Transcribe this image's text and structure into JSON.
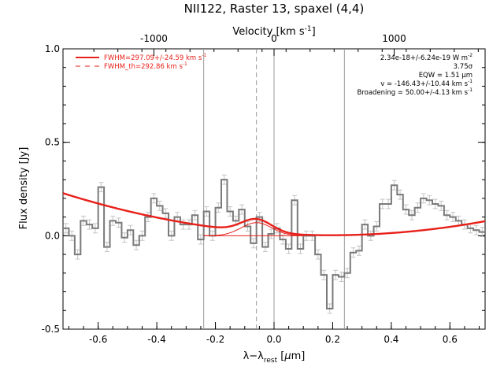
{
  "chart_data": {
    "type": "line",
    "title": "NII122, Raster 13, spaxel (4,4)",
    "xlabel_main": "λ−λ",
    "xlabel_sub": "rest",
    "xlabel_unit_pre": " [",
    "xlabel_unit_mu": "μ",
    "xlabel_unit_post": "m]",
    "ylabel": "Flux density [Jy]",
    "top_axis_label": "Velocity [km s",
    "top_axis_label_exp": "-1",
    "top_axis_label_end": "]",
    "xlim": [
      -0.72,
      0.72
    ],
    "ylim": [
      -0.5,
      1.0
    ],
    "x_ticks": [
      "-0.6",
      "-0.4",
      "-0.2",
      "0.0",
      "0.2",
      "0.4",
      "0.6"
    ],
    "x_tick_values": [
      -0.6,
      -0.4,
      -0.2,
      0.0,
      0.2,
      0.4,
      0.6
    ],
    "y_ticks": [
      "-0.5",
      "0.0",
      "0.5",
      "1.0"
    ],
    "y_tick_values": [
      -0.5,
      0.0,
      0.5,
      1.0
    ],
    "top_ticks": [
      "-1000",
      "0",
      "1000"
    ],
    "top_tick_values": [
      -1000,
      0,
      1000
    ],
    "velocity_per_um": 2440,
    "legend": [
      {
        "label": "FWHM=297.09+/-24.59 km s",
        "exp": "-1",
        "style": "solid",
        "color": "#e8201a"
      },
      {
        "label": "FWHM_th=292.86 km s",
        "exp": "-1",
        "style": "dashed",
        "color": "#e8201a"
      }
    ],
    "annotations": [
      {
        "pre": "2.34e-18+/-6.24e-19 W m",
        "exp": "-2"
      },
      {
        "pre": "3.75σ",
        "exp": ""
      },
      {
        "pre": "EQW = 1.51 μm",
        "exp": ""
      },
      {
        "pre": "v = -146.43+/-10.44 km s",
        "exp": "-1"
      },
      {
        "pre": "Broadening = 50.00+/-4.13 km s",
        "exp": "-1"
      }
    ],
    "vertical_lines": [
      {
        "x": -0.24,
        "style": "solid"
      },
      {
        "x": -0.06,
        "style": "dashed"
      },
      {
        "x": 0.0,
        "style": "solid"
      },
      {
        "x": 0.24,
        "style": "solid"
      }
    ],
    "spectrum": {
      "x": [
        -0.72,
        -0.7,
        -0.68,
        -0.66,
        -0.64,
        -0.62,
        -0.6,
        -0.58,
        -0.56,
        -0.54,
        -0.52,
        -0.5,
        -0.48,
        -0.46,
        -0.44,
        -0.42,
        -0.4,
        -0.38,
        -0.36,
        -0.34,
        -0.32,
        -0.3,
        -0.28,
        -0.26,
        -0.24,
        -0.22,
        -0.2,
        -0.18,
        -0.16,
        -0.14,
        -0.12,
        -0.1,
        -0.08,
        -0.06,
        -0.04,
        -0.02,
        0.0,
        0.02,
        0.04,
        0.06,
        0.08,
        0.1,
        0.12,
        0.14,
        0.16,
        0.18,
        0.2,
        0.22,
        0.24,
        0.26,
        0.28,
        0.3,
        0.32,
        0.34,
        0.36,
        0.38,
        0.4,
        0.42,
        0.44,
        0.46,
        0.48,
        0.5,
        0.52,
        0.54,
        0.56,
        0.58,
        0.6,
        0.62,
        0.64,
        0.66,
        0.68,
        0.7
      ],
      "y": [
        0.04,
        0.0,
        -0.1,
        0.08,
        0.06,
        0.04,
        0.26,
        -0.06,
        0.08,
        0.07,
        -0.01,
        0.03,
        -0.05,
        0.0,
        0.1,
        0.2,
        0.16,
        0.12,
        0.0,
        0.1,
        0.06,
        0.06,
        0.11,
        -0.02,
        0.13,
        0.0,
        0.15,
        0.3,
        0.13,
        0.08,
        0.14,
        0.05,
        -0.04,
        0.1,
        -0.06,
        0.01,
        0.04,
        -0.02,
        -0.07,
        0.19,
        -0.07,
        0.0,
        0.0,
        -0.1,
        -0.21,
        -0.39,
        -0.21,
        -0.22,
        -0.2,
        -0.09,
        -0.08,
        0.06,
        0.0,
        0.05,
        0.17,
        0.17,
        0.27,
        0.22,
        0.14,
        0.11,
        0.15,
        0.2,
        0.19,
        0.17,
        0.16,
        0.11,
        0.1,
        0.08,
        0.06,
        0.04,
        0.03,
        0.02
      ],
      "error": 0.025
    },
    "fit": {
      "continuum_coeffs": {
        "c0": 0.005,
        "c1": -0.05,
        "c2": 0.27,
        "x0": 0.1
      },
      "gaussian": {
        "amp": 0.07,
        "center": -0.06,
        "sigma": 0.052
      }
    }
  }
}
